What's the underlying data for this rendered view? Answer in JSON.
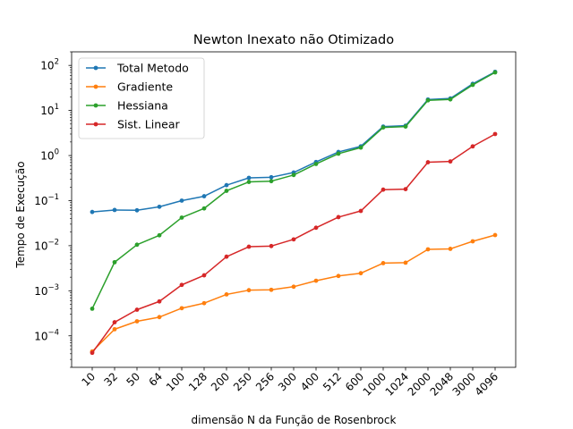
{
  "chart_data": {
    "type": "line",
    "title": "Newton Inexato não Otimizado",
    "xlabel": "dimensão N da Função de Rosenbrock",
    "ylabel": "Tempo de Execução",
    "yscale": "log",
    "ylim": [
      2e-05,
      200
    ],
    "yticks": [
      {
        "value": 0.0001,
        "base": "10",
        "exp": "−4"
      },
      {
        "value": 0.001,
        "base": "10",
        "exp": "−3"
      },
      {
        "value": 0.01,
        "base": "10",
        "exp": "−2"
      },
      {
        "value": 0.1,
        "base": "10",
        "exp": "−1"
      },
      {
        "value": 1,
        "base": "10",
        "exp": "0"
      },
      {
        "value": 10,
        "base": "10",
        "exp": "1"
      },
      {
        "value": 100,
        "base": "10",
        "exp": "2"
      }
    ],
    "categories": [
      "10",
      "32",
      "50",
      "64",
      "100",
      "128",
      "200",
      "250",
      "256",
      "300",
      "400",
      "512",
      "600",
      "1000",
      "1024",
      "2000",
      "2048",
      "3000",
      "4096"
    ],
    "grid": false,
    "legend_position": "top-left",
    "series": [
      {
        "name": "Total Metodo",
        "color": "#1f77b4",
        "values": [
          0.056,
          0.062,
          0.061,
          0.073,
          0.1,
          0.125,
          0.22,
          0.32,
          0.33,
          0.42,
          0.72,
          1.2,
          1.6,
          4.4,
          4.6,
          17.5,
          18.5,
          39,
          72
        ]
      },
      {
        "name": "Gradiente",
        "color": "#ff7f0e",
        "values": [
          4.5e-05,
          0.00014,
          0.00021,
          0.00026,
          0.00041,
          0.00053,
          0.00083,
          0.00103,
          0.00105,
          0.00123,
          0.00167,
          0.00213,
          0.00245,
          0.0041,
          0.0042,
          0.0083,
          0.0085,
          0.0125,
          0.0172
        ]
      },
      {
        "name": "Hessiana",
        "color": "#2ca02c",
        "values": [
          0.0004,
          0.0043,
          0.0105,
          0.017,
          0.042,
          0.067,
          0.165,
          0.26,
          0.27,
          0.37,
          0.65,
          1.1,
          1.5,
          4.2,
          4.4,
          16.8,
          17.6,
          37,
          70
        ]
      },
      {
        "name": "Sist. Linear",
        "color": "#d62728",
        "values": [
          4.2e-05,
          0.0002,
          0.00038,
          0.00058,
          0.00135,
          0.0022,
          0.0057,
          0.0095,
          0.0098,
          0.0138,
          0.025,
          0.043,
          0.059,
          0.175,
          0.18,
          0.71,
          0.74,
          1.6,
          3.0
        ]
      }
    ]
  }
}
